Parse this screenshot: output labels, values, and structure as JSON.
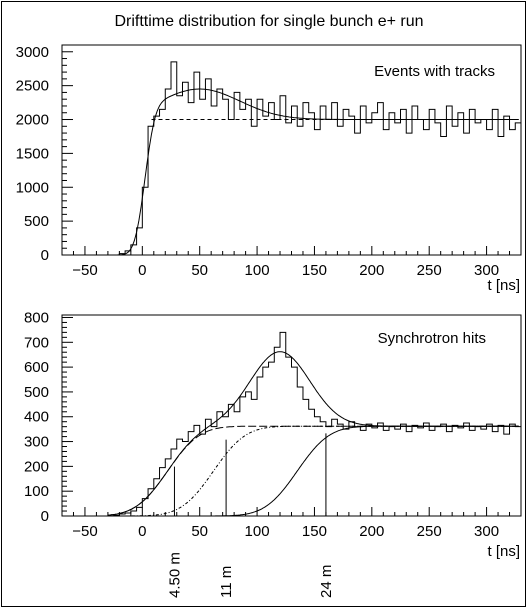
{
  "title": "Drifttime distribution for single bunch e+ run",
  "chart_data": [
    {
      "type": "histogram",
      "label": "Events with tracks",
      "xlabel": "t [ns]",
      "xlim": [
        -70,
        330
      ],
      "ylim": [
        0,
        3100
      ],
      "xticks": [
        -50,
        0,
        50,
        100,
        150,
        200,
        250,
        300
      ],
      "yticks": [
        0,
        500,
        1000,
        1500,
        2000,
        2500,
        3000
      ],
      "bin_width": 5,
      "bins": [
        {
          "x": -20,
          "y": 20
        },
        {
          "x": -15,
          "y": 60
        },
        {
          "x": -10,
          "y": 150
        },
        {
          "x": -5,
          "y": 400
        },
        {
          "x": 0,
          "y": 1000
        },
        {
          "x": 5,
          "y": 1900
        },
        {
          "x": 10,
          "y": 2050
        },
        {
          "x": 15,
          "y": 2150
        },
        {
          "x": 20,
          "y": 2450
        },
        {
          "x": 25,
          "y": 2850
        },
        {
          "x": 30,
          "y": 2350
        },
        {
          "x": 35,
          "y": 2550
        },
        {
          "x": 40,
          "y": 2250
        },
        {
          "x": 45,
          "y": 2700
        },
        {
          "x": 50,
          "y": 2300
        },
        {
          "x": 55,
          "y": 2600
        },
        {
          "x": 60,
          "y": 2200
        },
        {
          "x": 65,
          "y": 2450
        },
        {
          "x": 70,
          "y": 2300
        },
        {
          "x": 75,
          "y": 2000
        },
        {
          "x": 80,
          "y": 2400
        },
        {
          "x": 85,
          "y": 2150
        },
        {
          "x": 90,
          "y": 2300
        },
        {
          "x": 95,
          "y": 1900
        },
        {
          "x": 100,
          "y": 2300
        },
        {
          "x": 105,
          "y": 2050
        },
        {
          "x": 110,
          "y": 2250
        },
        {
          "x": 115,
          "y": 2000
        },
        {
          "x": 120,
          "y": 2350
        },
        {
          "x": 125,
          "y": 1950
        },
        {
          "x": 130,
          "y": 2200
        },
        {
          "x": 135,
          "y": 1900
        },
        {
          "x": 140,
          "y": 2250
        },
        {
          "x": 145,
          "y": 2100
        },
        {
          "x": 150,
          "y": 1850
        },
        {
          "x": 155,
          "y": 2200
        },
        {
          "x": 160,
          "y": 2000
        },
        {
          "x": 165,
          "y": 2250
        },
        {
          "x": 170,
          "y": 1900
        },
        {
          "x": 175,
          "y": 2150
        },
        {
          "x": 180,
          "y": 2050
        },
        {
          "x": 185,
          "y": 1800
        },
        {
          "x": 190,
          "y": 2200
        },
        {
          "x": 195,
          "y": 1950
        },
        {
          "x": 200,
          "y": 2100
        },
        {
          "x": 205,
          "y": 2250
        },
        {
          "x": 210,
          "y": 1850
        },
        {
          "x": 215,
          "y": 2100
        },
        {
          "x": 220,
          "y": 1950
        },
        {
          "x": 225,
          "y": 2150
        },
        {
          "x": 230,
          "y": 1800
        },
        {
          "x": 235,
          "y": 2200
        },
        {
          "x": 240,
          "y": 2000
        },
        {
          "x": 245,
          "y": 1850
        },
        {
          "x": 250,
          "y": 2150
        },
        {
          "x": 255,
          "y": 1950
        },
        {
          "x": 260,
          "y": 1750
        },
        {
          "x": 265,
          "y": 2200
        },
        {
          "x": 270,
          "y": 1900
        },
        {
          "x": 275,
          "y": 2100
        },
        {
          "x": 280,
          "y": 1800
        },
        {
          "x": 285,
          "y": 2150
        },
        {
          "x": 290,
          "y": 1950
        },
        {
          "x": 295,
          "y": 2000
        },
        {
          "x": 300,
          "y": 1850
        },
        {
          "x": 305,
          "y": 2150
        },
        {
          "x": 310,
          "y": 1750
        },
        {
          "x": 315,
          "y": 2050
        },
        {
          "x": 320,
          "y": 1850
        },
        {
          "x": 325,
          "y": 1950
        }
      ],
      "fit": {
        "plateau": 2000,
        "t0": 2,
        "rise_sigma": 7,
        "bump_amp": 450,
        "bump_center": 50,
        "bump_sigma": 35
      }
    },
    {
      "type": "histogram",
      "label": "Synchrotron hits",
      "xlabel": "t [ns]",
      "xlim": [
        -70,
        330
      ],
      "ylim": [
        0,
        810
      ],
      "xticks": [
        -50,
        0,
        50,
        100,
        150,
        200,
        250,
        300
      ],
      "yticks": [
        0,
        100,
        200,
        300,
        400,
        500,
        600,
        700,
        800
      ],
      "bin_width": 5,
      "bins": [
        {
          "x": -25,
          "y": 3
        },
        {
          "x": -20,
          "y": 8
        },
        {
          "x": -15,
          "y": 12
        },
        {
          "x": -10,
          "y": 20
        },
        {
          "x": -5,
          "y": 35
        },
        {
          "x": 0,
          "y": 70
        },
        {
          "x": 5,
          "y": 110
        },
        {
          "x": 10,
          "y": 150
        },
        {
          "x": 15,
          "y": 195
        },
        {
          "x": 20,
          "y": 230
        },
        {
          "x": 25,
          "y": 270
        },
        {
          "x": 30,
          "y": 310
        },
        {
          "x": 35,
          "y": 300
        },
        {
          "x": 40,
          "y": 340
        },
        {
          "x": 45,
          "y": 365
        },
        {
          "x": 50,
          "y": 330
        },
        {
          "x": 55,
          "y": 390
        },
        {
          "x": 60,
          "y": 360
        },
        {
          "x": 65,
          "y": 420
        },
        {
          "x": 70,
          "y": 400
        },
        {
          "x": 75,
          "y": 450
        },
        {
          "x": 80,
          "y": 420
        },
        {
          "x": 85,
          "y": 480
        },
        {
          "x": 90,
          "y": 500
        },
        {
          "x": 95,
          "y": 470
        },
        {
          "x": 100,
          "y": 560
        },
        {
          "x": 105,
          "y": 600
        },
        {
          "x": 110,
          "y": 620
        },
        {
          "x": 115,
          "y": 680
        },
        {
          "x": 120,
          "y": 740
        },
        {
          "x": 125,
          "y": 640
        },
        {
          "x": 130,
          "y": 600
        },
        {
          "x": 135,
          "y": 520
        },
        {
          "x": 140,
          "y": 470
        },
        {
          "x": 145,
          "y": 430
        },
        {
          "x": 150,
          "y": 400
        },
        {
          "x": 155,
          "y": 380
        },
        {
          "x": 160,
          "y": 360
        },
        {
          "x": 165,
          "y": 390
        },
        {
          "x": 170,
          "y": 370
        },
        {
          "x": 175,
          "y": 350
        },
        {
          "x": 180,
          "y": 380
        },
        {
          "x": 185,
          "y": 360
        },
        {
          "x": 190,
          "y": 345
        },
        {
          "x": 195,
          "y": 370
        },
        {
          "x": 200,
          "y": 355
        },
        {
          "x": 205,
          "y": 375
        },
        {
          "x": 210,
          "y": 345
        },
        {
          "x": 215,
          "y": 360
        },
        {
          "x": 220,
          "y": 350
        },
        {
          "x": 225,
          "y": 370
        },
        {
          "x": 230,
          "y": 340
        },
        {
          "x": 235,
          "y": 365
        },
        {
          "x": 240,
          "y": 355
        },
        {
          "x": 245,
          "y": 375
        },
        {
          "x": 250,
          "y": 345
        },
        {
          "x": 255,
          "y": 360
        },
        {
          "x": 260,
          "y": 370
        },
        {
          "x": 265,
          "y": 340
        },
        {
          "x": 270,
          "y": 365
        },
        {
          "x": 275,
          "y": 355
        },
        {
          "x": 280,
          "y": 375
        },
        {
          "x": 285,
          "y": 345
        },
        {
          "x": 290,
          "y": 360
        },
        {
          "x": 295,
          "y": 350
        },
        {
          "x": 300,
          "y": 370
        },
        {
          "x": 305,
          "y": 340
        },
        {
          "x": 310,
          "y": 365
        },
        {
          "x": 315,
          "y": 330
        },
        {
          "x": 320,
          "y": 370
        },
        {
          "x": 325,
          "y": 360
        }
      ],
      "components": [
        {
          "t0": 22,
          "sigma": 22,
          "plateau": 362
        },
        {
          "t0": 62,
          "sigma": 22,
          "plateau": 362
        },
        {
          "t0": 135,
          "sigma": 22,
          "plateau": 362
        }
      ],
      "peak": {
        "amp": 300,
        "center": 120,
        "sigma": 26
      },
      "markers": [
        {
          "label": "4.50 m",
          "x": 28,
          "y": 362
        },
        {
          "label": "11 m",
          "x": 73,
          "y": 362
        },
        {
          "label": "24 m",
          "x": 160,
          "y": 362
        }
      ]
    }
  ]
}
